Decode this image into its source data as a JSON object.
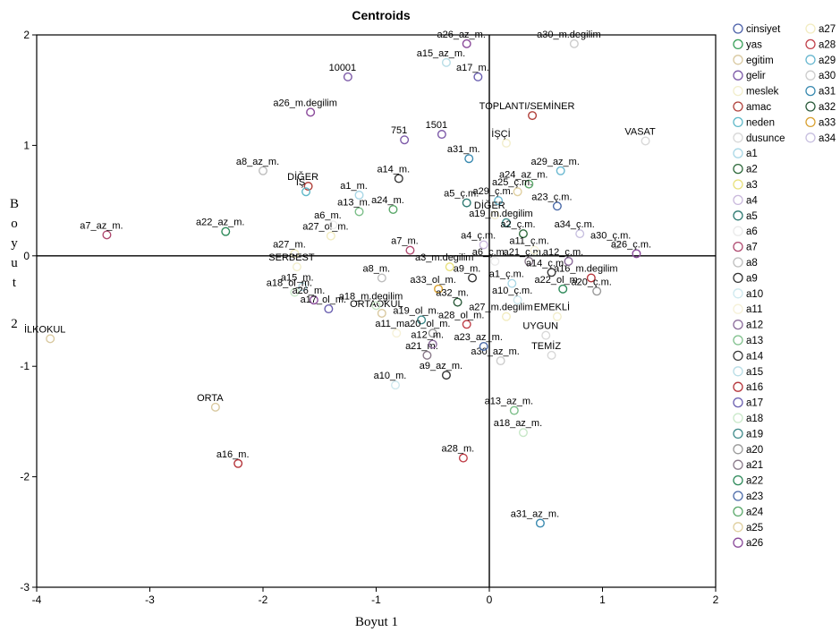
{
  "chart_data": {
    "type": "scatter",
    "title": "Centroids",
    "xlabel": "Boyut 1",
    "ylabel": "Boyut 2",
    "xlim": [
      -4,
      2
    ],
    "ylim": [
      -3,
      2
    ],
    "x_ticks": [
      "-4",
      "-3",
      "-2",
      "-1",
      "0",
      "1",
      "2"
    ],
    "y_ticks": [
      "-3",
      "-2",
      "-1",
      "0",
      "1",
      "2"
    ],
    "reference_lines": {
      "x": 0,
      "y": 0
    },
    "legend_position": "right",
    "legend": [
      {
        "name": "cinsiyet",
        "color": "#4a5fa8"
      },
      {
        "name": "yas",
        "color": "#3aa05a"
      },
      {
        "name": "egitim",
        "color": "#d9c9a0"
      },
      {
        "name": "gelir",
        "color": "#7d5aa8"
      },
      {
        "name": "meslek",
        "color": "#f2eecc"
      },
      {
        "name": "amac",
        "color": "#b0403a"
      },
      {
        "name": "neden",
        "color": "#5fb8c8"
      },
      {
        "name": "dusunce",
        "color": "#d8d8d8"
      },
      {
        "name": "a1",
        "color": "#a9d7e6"
      },
      {
        "name": "a2",
        "color": "#2f6a3c"
      },
      {
        "name": "a3",
        "color": "#e8e07a"
      },
      {
        "name": "a4",
        "color": "#c9b8dc"
      },
      {
        "name": "a5",
        "color": "#2f7a72"
      },
      {
        "name": "a6",
        "color": "#eaeaea"
      },
      {
        "name": "a7",
        "color": "#b04a70"
      },
      {
        "name": "a8",
        "color": "#bdbdbd"
      },
      {
        "name": "a9",
        "color": "#333333"
      },
      {
        "name": "a10",
        "color": "#cfe9ef"
      },
      {
        "name": "a11",
        "color": "#f6f1d8"
      },
      {
        "name": "a12",
        "color": "#8a6a9a"
      },
      {
        "name": "a13",
        "color": "#7dbf8a"
      },
      {
        "name": "a14",
        "color": "#3a3a3a"
      },
      {
        "name": "a15",
        "color": "#b8dde6"
      },
      {
        "name": "a16",
        "color": "#b5343a"
      },
      {
        "name": "a17",
        "color": "#6a5fb0"
      },
      {
        "name": "a18",
        "color": "#c8e8c8"
      },
      {
        "name": "a19",
        "color": "#3f8a8a"
      },
      {
        "name": "a20",
        "color": "#9a9a9a"
      },
      {
        "name": "a21",
        "color": "#8a7a8a"
      },
      {
        "name": "a22",
        "color": "#2e8a5a"
      },
      {
        "name": "a23",
        "color": "#4a6aa8"
      },
      {
        "name": "a24",
        "color": "#5aa86a"
      },
      {
        "name": "a25",
        "color": "#e0d0a0"
      },
      {
        "name": "a26",
        "color": "#8a4a9a"
      },
      {
        "name": "a27",
        "color": "#f2ecc0"
      },
      {
        "name": "a28",
        "color": "#c0404a"
      },
      {
        "name": "a29",
        "color": "#6ab8d0"
      },
      {
        "name": "a30",
        "color": "#cccccc"
      },
      {
        "name": "a31",
        "color": "#3a8ab0"
      },
      {
        "name": "a32",
        "color": "#2a5a3a"
      },
      {
        "name": "a33",
        "color": "#d8a030"
      },
      {
        "name": "a34",
        "color": "#c8c0e0"
      }
    ],
    "points": [
      {
        "label": "a26_az_m.",
        "x": -0.2,
        "y": 1.92,
        "color": "#8a4a9a"
      },
      {
        "label": "a30_m.degilim",
        "x": 0.75,
        "y": 1.92,
        "color": "#cccccc"
      },
      {
        "label": "a15_az_m.",
        "x": -0.38,
        "y": 1.75,
        "color": "#b8dde6"
      },
      {
        "label": "a17_m.",
        "x": -0.1,
        "y": 1.62,
        "color": "#6a5fb0"
      },
      {
        "label": "10001",
        "x": -1.25,
        "y": 1.62,
        "color": "#7d5aa8"
      },
      {
        "label": "a26_m.degilim",
        "x": -1.58,
        "y": 1.3,
        "color": "#8a4a9a"
      },
      {
        "label": "TOPLANTI/SEMİNER",
        "x": 0.38,
        "y": 1.27,
        "color": "#b0403a"
      },
      {
        "label": "751",
        "x": -0.75,
        "y": 1.05,
        "color": "#7d5aa8"
      },
      {
        "label": "1501",
        "x": -0.42,
        "y": 1.1,
        "color": "#7d5aa8"
      },
      {
        "label": "İŞÇİ",
        "x": 0.15,
        "y": 1.02,
        "color": "#f2eecc"
      },
      {
        "label": "VASAT",
        "x": 1.38,
        "y": 1.04,
        "color": "#d8d8d8"
      },
      {
        "label": "a31_m.",
        "x": -0.18,
        "y": 0.88,
        "color": "#3a8ab0"
      },
      {
        "label": "a29_az_m.",
        "x": 0.63,
        "y": 0.77,
        "color": "#6ab8d0"
      },
      {
        "label": "a8_az_m.",
        "x": -2.0,
        "y": 0.77,
        "color": "#bdbdbd"
      },
      {
        "label": "a14_m.",
        "x": -0.8,
        "y": 0.7,
        "color": "#3a3a3a"
      },
      {
        "label": "a1_m.",
        "x": -1.15,
        "y": 0.55,
        "color": "#a9d7e6"
      },
      {
        "label": "DİĞER",
        "x": -1.6,
        "y": 0.63,
        "color": "#b0403a"
      },
      {
        "label": "İŞ",
        "x": -1.62,
        "y": 0.58,
        "color": "#5fb8c8"
      },
      {
        "label": "a24_az_m.",
        "x": 0.35,
        "y": 0.65,
        "color": "#5aa86a"
      },
      {
        "label": "a23_ç.m.",
        "x": 0.6,
        "y": 0.45,
        "color": "#4a6aa8"
      },
      {
        "label": "a7_az_m.",
        "x": -3.38,
        "y": 0.19,
        "color": "#b04a70"
      },
      {
        "label": "a22_az_m.",
        "x": -2.33,
        "y": 0.22,
        "color": "#2e8a5a"
      },
      {
        "label": "a27_ol_m.",
        "x": -1.4,
        "y": 0.18,
        "color": "#f2ecc0"
      },
      {
        "label": "a34_ç.m.",
        "x": 0.8,
        "y": 0.2,
        "color": "#c8c0e0"
      },
      {
        "label": "a30_ç.m.",
        "x": 1.12,
        "y": 0.1,
        "color": "#cccccc"
      },
      {
        "label": "a26_ç.m.",
        "x": 1.3,
        "y": 0.02,
        "color": "#8a4a9a"
      },
      {
        "label": "a16_m.degilim",
        "x": 0.9,
        "y": -0.2,
        "color": "#b5343a"
      },
      {
        "label": "İLKOKUL",
        "x": -3.88,
        "y": -0.75,
        "color": "#d9c9a0"
      },
      {
        "label": "ORTAOKUL",
        "x": -0.95,
        "y": -0.52,
        "color": "#d9c9a0"
      },
      {
        "label": "a11_m.",
        "x": -0.82,
        "y": -0.7,
        "color": "#f6f1d8"
      },
      {
        "label": "a19_ol_m.",
        "x": -0.6,
        "y": -0.58,
        "color": "#3f8a8a"
      },
      {
        "label": "EMEKLİ",
        "x": 0.6,
        "y": -0.55,
        "color": "#f2eecc"
      },
      {
        "label": "UYGUN",
        "x": 0.5,
        "y": -0.72,
        "color": "#d8d8d8"
      },
      {
        "label": "a21_m.",
        "x": -0.55,
        "y": -0.9,
        "color": "#8a7a8a"
      },
      {
        "label": "TEMİZ",
        "x": 0.55,
        "y": -0.9,
        "color": "#d8d8d8"
      },
      {
        "label": "a30_az_m.",
        "x": 0.1,
        "y": -0.95,
        "color": "#cccccc"
      },
      {
        "label": "a10_m.",
        "x": -0.83,
        "y": -1.17,
        "color": "#cfe9ef"
      },
      {
        "label": "a9_az_m.",
        "x": -0.38,
        "y": -1.08,
        "color": "#333333"
      },
      {
        "label": "ORTA",
        "x": -2.42,
        "y": -1.37,
        "color": "#d9c9a0"
      },
      {
        "label": "a13_az_m.",
        "x": 0.22,
        "y": -1.4,
        "color": "#7dbf8a"
      },
      {
        "label": "a18_az_m.",
        "x": 0.3,
        "y": -1.6,
        "color": "#c8e8c8"
      },
      {
        "label": "a28_m.",
        "x": -0.23,
        "y": -1.83,
        "color": "#c0404a"
      },
      {
        "label": "a16_m.",
        "x": -2.22,
        "y": -1.88,
        "color": "#b5343a"
      },
      {
        "label": "a31_az_m.",
        "x": 0.45,
        "y": -2.42,
        "color": "#3a8ab0"
      },
      {
        "label": "a13_m.",
        "x": -1.15,
        "y": 0.4,
        "color": "#7dbf8a"
      },
      {
        "label": "a6_m.",
        "x": -1.38,
        "y": 0.28,
        "color": "#eaeaea"
      },
      {
        "label": "a24_m.",
        "x": -0.85,
        "y": 0.42,
        "color": "#5aa86a"
      },
      {
        "label": "a5_ç.m.",
        "x": -0.2,
        "y": 0.48,
        "color": "#2f7a72"
      },
      {
        "label": "a29_ç.m.",
        "x": 0.08,
        "y": 0.5,
        "color": "#6ab8d0"
      },
      {
        "label": "DİĞER",
        "x": 0.05,
        "y": 0.37,
        "color": "#f2eecc"
      },
      {
        "label": "a19_m.degilim",
        "x": 0.15,
        "y": 0.3,
        "color": "#3f8a8a"
      },
      {
        "label": "a27_m.",
        "x": -1.72,
        "y": 0.02,
        "color": "#f2ecc0"
      },
      {
        "label": "SERBEST",
        "x": -1.7,
        "y": -0.1,
        "color": "#f2eecc"
      },
      {
        "label": "a15_m.",
        "x": -1.65,
        "y": -0.28,
        "color": "#b8dde6"
      },
      {
        "label": "a18_ol_m.",
        "x": -1.72,
        "y": -0.33,
        "color": "#c8e8c8"
      },
      {
        "label": "a26_m.",
        "x": -1.55,
        "y": -0.4,
        "color": "#8a4a9a"
      },
      {
        "label": "a17_ol_m.",
        "x": -1.42,
        "y": -0.48,
        "color": "#6a5fb0"
      },
      {
        "label": "a18_m.degilim",
        "x": -1.0,
        "y": -0.45,
        "color": "#c8e8c8"
      },
      {
        "label": "a20_ol_m.",
        "x": -0.5,
        "y": -0.7,
        "color": "#9a9a9a"
      },
      {
        "label": "a12_m.",
        "x": -0.5,
        "y": -0.8,
        "color": "#8a6a9a"
      },
      {
        "label": "a27_m.degilim",
        "x": 0.15,
        "y": -0.55,
        "color": "#f2ecc0"
      },
      {
        "label": "a21_ç.m.",
        "x": 0.35,
        "y": -0.05,
        "color": "#8a7a8a"
      },
      {
        "label": "a25_ç.m.",
        "x": 0.25,
        "y": 0.58,
        "color": "#e0d0a0"
      },
      {
        "label": "a4_ç.m.",
        "x": -0.05,
        "y": 0.1,
        "color": "#c9b8dc"
      },
      {
        "label": "a3_m.degilim",
        "x": -0.35,
        "y": -0.1,
        "color": "#e8e07a"
      },
      {
        "label": "a14_ç.m.",
        "x": 0.55,
        "y": -0.15,
        "color": "#3a3a3a"
      },
      {
        "label": "a33_ol_m.",
        "x": -0.45,
        "y": -0.3,
        "color": "#d8a030"
      },
      {
        "label": "a32_m.",
        "x": -0.28,
        "y": -0.42,
        "color": "#2a5a3a"
      },
      {
        "label": "a9_m.",
        "x": -0.15,
        "y": -0.2,
        "color": "#333333"
      },
      {
        "label": "a2_ç.m.",
        "x": 0.3,
        "y": 0.2,
        "color": "#2f6a3c"
      },
      {
        "label": "a12_ç.m.",
        "x": 0.7,
        "y": -0.05,
        "color": "#8a6a9a"
      },
      {
        "label": "a20_ç.m.",
        "x": 0.95,
        "y": -0.32,
        "color": "#9a9a9a"
      },
      {
        "label": "a22_ol_m.",
        "x": 0.65,
        "y": -0.3,
        "color": "#2e8a5a"
      },
      {
        "label": "a1_ç.m.",
        "x": 0.2,
        "y": -0.25,
        "color": "#a9d7e6"
      },
      {
        "label": "a28_ol_m.",
        "x": -0.2,
        "y": -0.62,
        "color": "#c0404a"
      },
      {
        "label": "a23_az_m.",
        "x": -0.05,
        "y": -0.82,
        "color": "#4a6aa8"
      },
      {
        "label": "a7_m.",
        "x": -0.7,
        "y": 0.05,
        "color": "#b04a70"
      },
      {
        "label": "a11_ç.m.",
        "x": 0.4,
        "y": 0.05,
        "color": "#f6f1d8"
      },
      {
        "label": "a10_ç.m.",
        "x": 0.25,
        "y": -0.4,
        "color": "#cfe9ef"
      },
      {
        "label": "a8_m.",
        "x": -0.95,
        "y": -0.2,
        "color": "#bdbdbd"
      },
      {
        "label": "a6_ç.m.",
        "x": 0.05,
        "y": -0.05,
        "color": "#eaeaea"
      }
    ]
  }
}
